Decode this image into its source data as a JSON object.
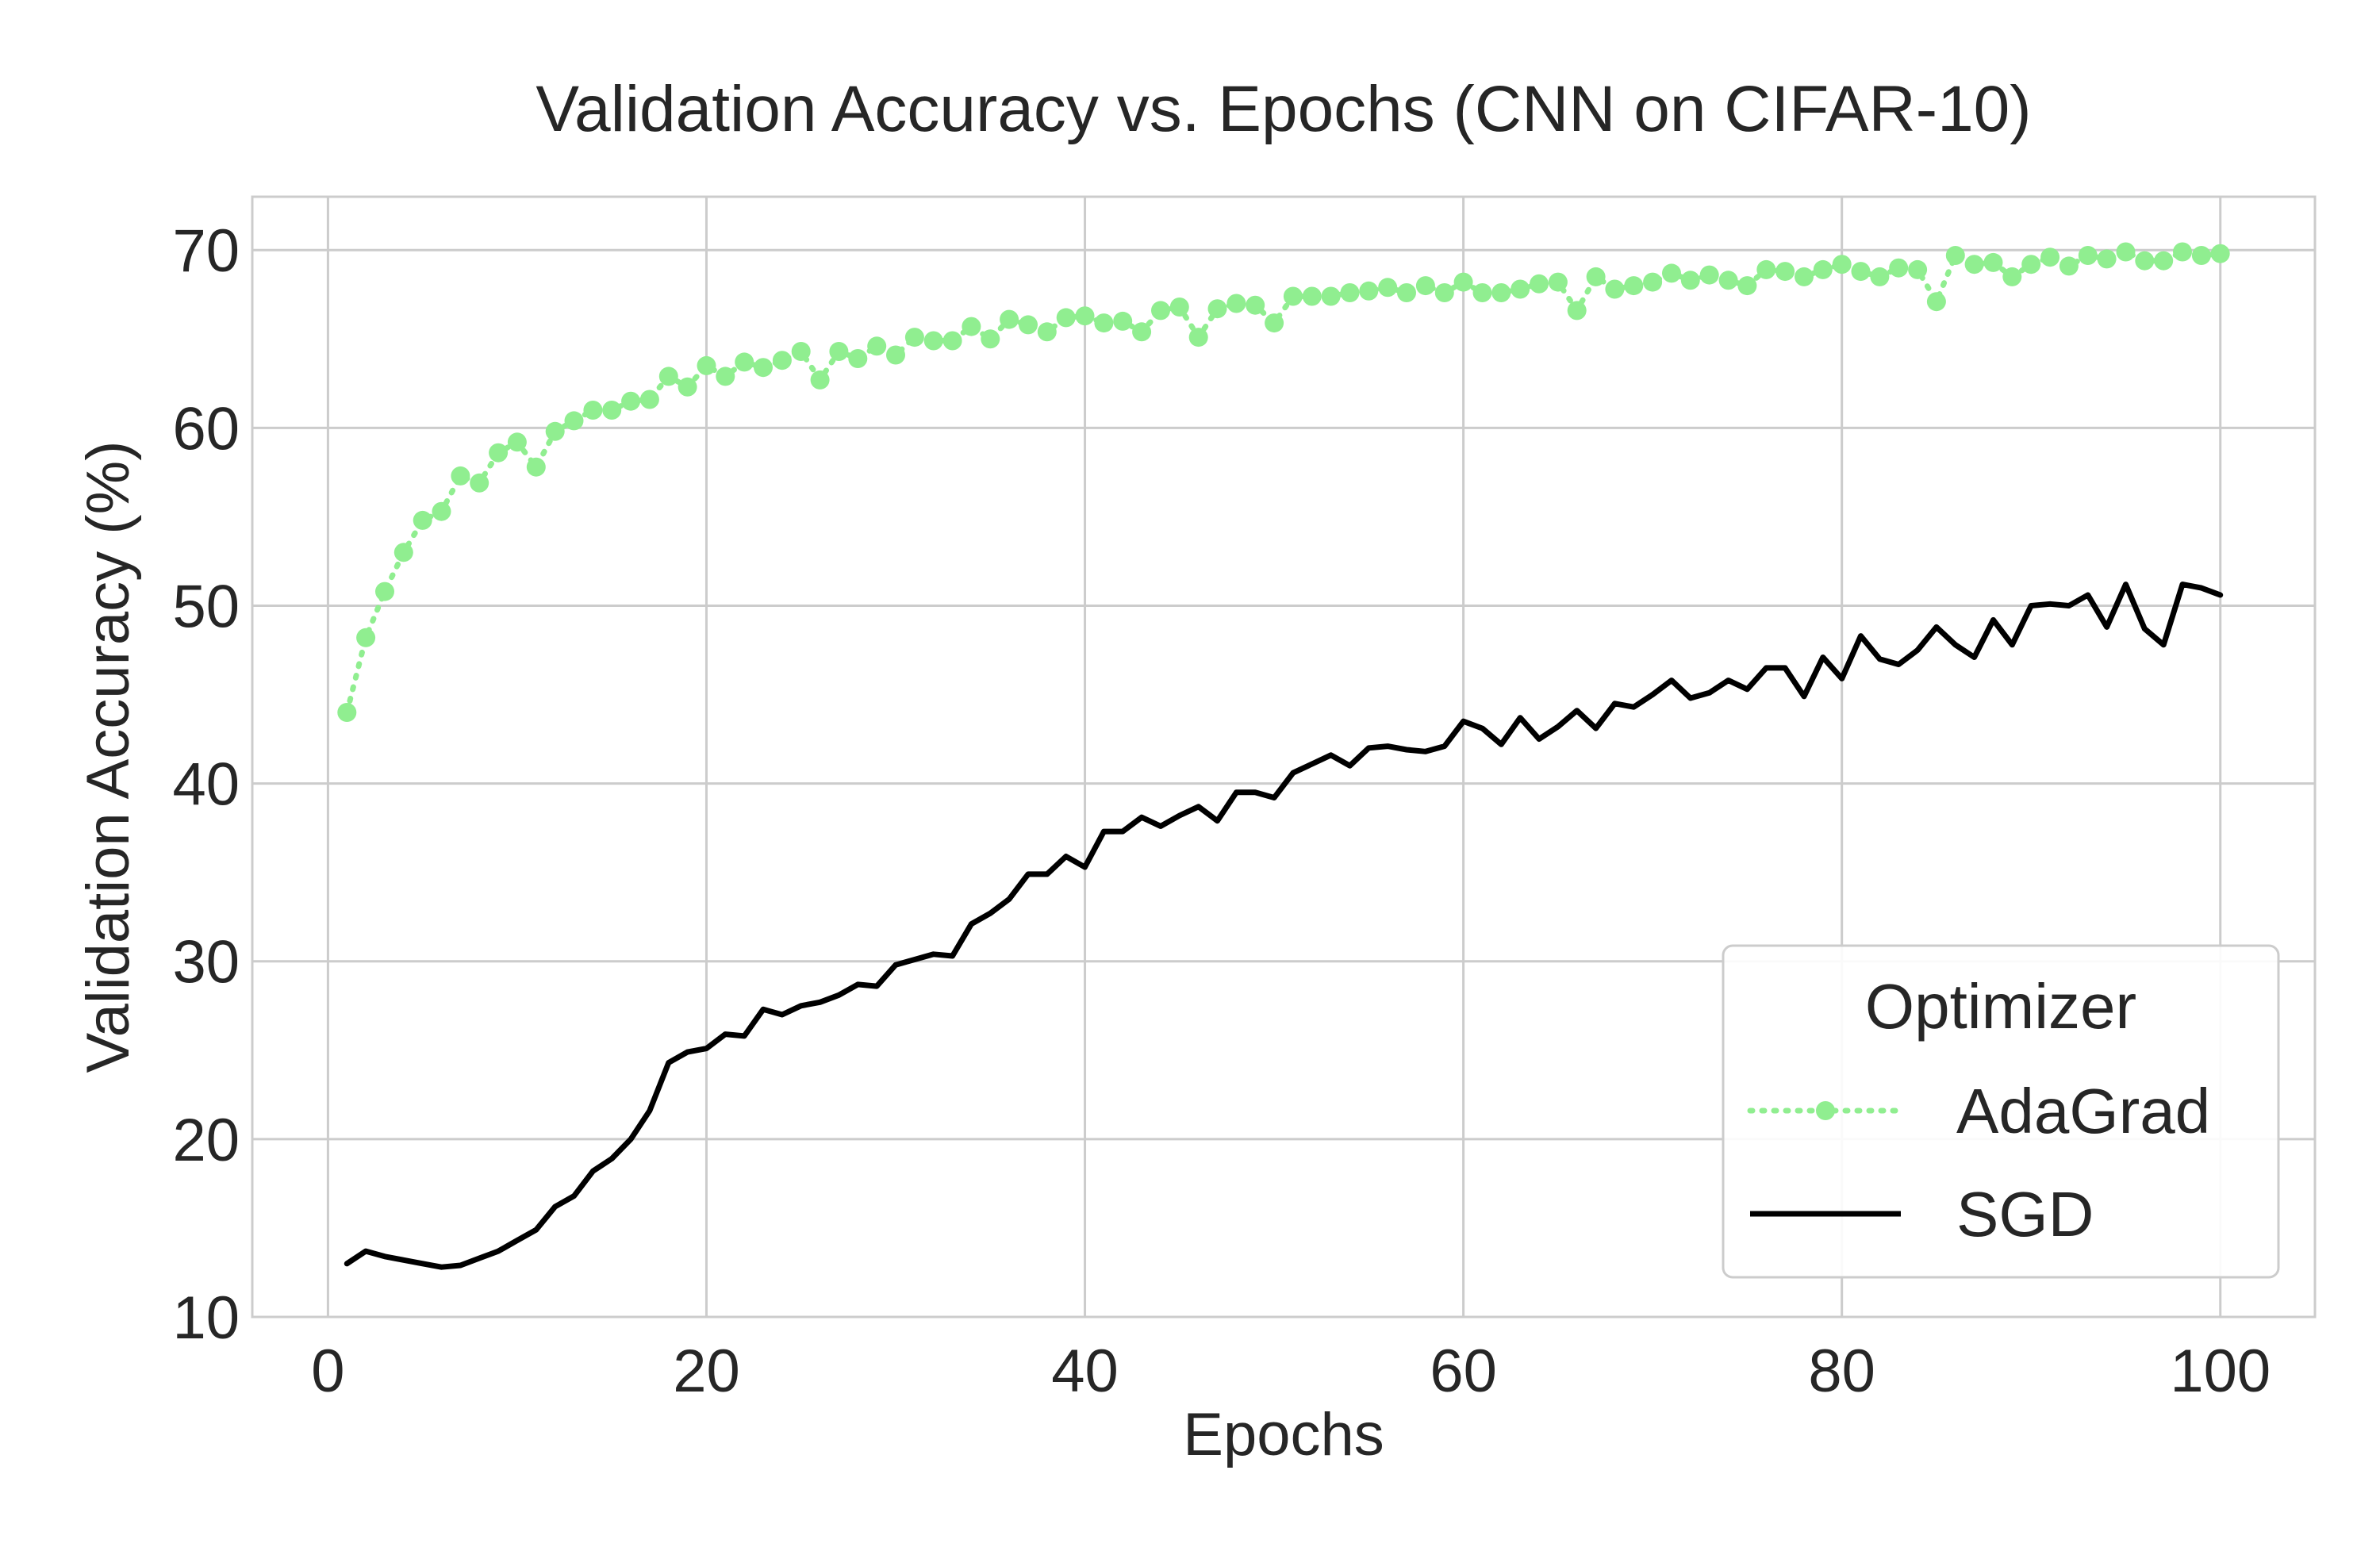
{
  "chart_data": {
    "type": "line",
    "title": "Validation Accuracy vs. Epochs (CNN on CIFAR-10)",
    "xlabel": "Epochs",
    "ylabel": "Validation Accuracy (%)",
    "xlim": [
      -4,
      105
    ],
    "ylim": [
      10,
      73
    ],
    "xticks": [
      0,
      20,
      40,
      60,
      80,
      100
    ],
    "yticks": [
      10,
      20,
      30,
      40,
      50,
      60,
      70
    ],
    "grid": true,
    "legend": {
      "title": "Optimizer",
      "placement": "lower-right"
    },
    "x": [
      1,
      2,
      3,
      4,
      5,
      6,
      7,
      8,
      9,
      10,
      11,
      12,
      13,
      14,
      15,
      16,
      17,
      18,
      19,
      20,
      21,
      22,
      23,
      24,
      25,
      26,
      27,
      28,
      29,
      30,
      31,
      32,
      33,
      34,
      35,
      36,
      37,
      38,
      39,
      40,
      41,
      42,
      43,
      44,
      45,
      46,
      47,
      48,
      49,
      50,
      51,
      52,
      53,
      54,
      55,
      56,
      57,
      58,
      59,
      60,
      61,
      62,
      63,
      64,
      65,
      66,
      67,
      68,
      69,
      70,
      71,
      72,
      73,
      74,
      75,
      76,
      77,
      78,
      79,
      80,
      81,
      82,
      83,
      84,
      85,
      86,
      87,
      88,
      89,
      90,
      91,
      92,
      93,
      94,
      95,
      96,
      97,
      98,
      99,
      100
    ],
    "series": [
      {
        "name": "AdaGrad",
        "color": "#90ee90",
        "style": "dotted-marker",
        "values": [
          44.0,
          48.2,
          50.8,
          53.0,
          54.8,
          55.3,
          57.3,
          56.9,
          58.6,
          59.2,
          57.8,
          59.8,
          60.4,
          61.0,
          61.0,
          61.5,
          61.6,
          62.9,
          62.3,
          63.5,
          62.9,
          63.7,
          63.4,
          63.8,
          64.3,
          62.7,
          64.3,
          63.9,
          64.6,
          64.1,
          65.1,
          64.9,
          64.9,
          65.7,
          65.0,
          66.1,
          65.8,
          65.4,
          66.2,
          66.3,
          65.9,
          66.0,
          65.4,
          66.6,
          66.8,
          65.1,
          66.7,
          67.0,
          66.9,
          65.9,
          67.4,
          67.4,
          67.4,
          67.6,
          67.7,
          67.9,
          67.6,
          68.0,
          67.6,
          68.2,
          67.6,
          67.6,
          67.8,
          68.1,
          68.2,
          66.6,
          68.5,
          67.8,
          68.0,
          68.2,
          68.7,
          68.3,
          68.6,
          68.3,
          68.0,
          68.9,
          68.8,
          68.5,
          68.9,
          69.2,
          68.8,
          68.5,
          69.0,
          68.9,
          67.1,
          69.7,
          69.2,
          69.3,
          68.5,
          69.2,
          69.6,
          69.1,
          69.7,
          69.5,
          69.9,
          69.4,
          69.4,
          69.9,
          69.7,
          69.8
        ]
      },
      {
        "name": "SGD",
        "color": "#000000",
        "style": "solid",
        "values": [
          13.0,
          13.7,
          13.4,
          13.2,
          13.0,
          12.8,
          12.9,
          13.3,
          13.7,
          14.3,
          14.9,
          16.2,
          16.8,
          18.2,
          18.9,
          20.0,
          21.6,
          24.3,
          24.9,
          25.1,
          25.9,
          25.8,
          27.3,
          27.0,
          27.5,
          27.7,
          28.1,
          28.7,
          28.6,
          29.8,
          30.1,
          30.4,
          30.3,
          32.1,
          32.7,
          33.5,
          34.9,
          34.9,
          35.9,
          35.3,
          37.3,
          37.3,
          38.1,
          37.6,
          38.2,
          38.7,
          37.9,
          39.5,
          39.5,
          39.2,
          40.6,
          41.1,
          41.6,
          41.0,
          42.0,
          42.1,
          41.9,
          41.8,
          42.1,
          43.5,
          43.1,
          42.2,
          43.7,
          42.5,
          43.2,
          44.1,
          43.1,
          44.5,
          44.3,
          45.0,
          45.8,
          44.8,
          45.1,
          45.8,
          45.3,
          46.5,
          46.5,
          44.9,
          47.1,
          45.9,
          48.3,
          47.0,
          46.7,
          47.5,
          48.8,
          47.8,
          47.1,
          49.2,
          47.8,
          50.0,
          50.1,
          50.0,
          50.6,
          48.8,
          51.2,
          48.7,
          47.8,
          51.2,
          51.0,
          50.6
        ]
      }
    ]
  }
}
